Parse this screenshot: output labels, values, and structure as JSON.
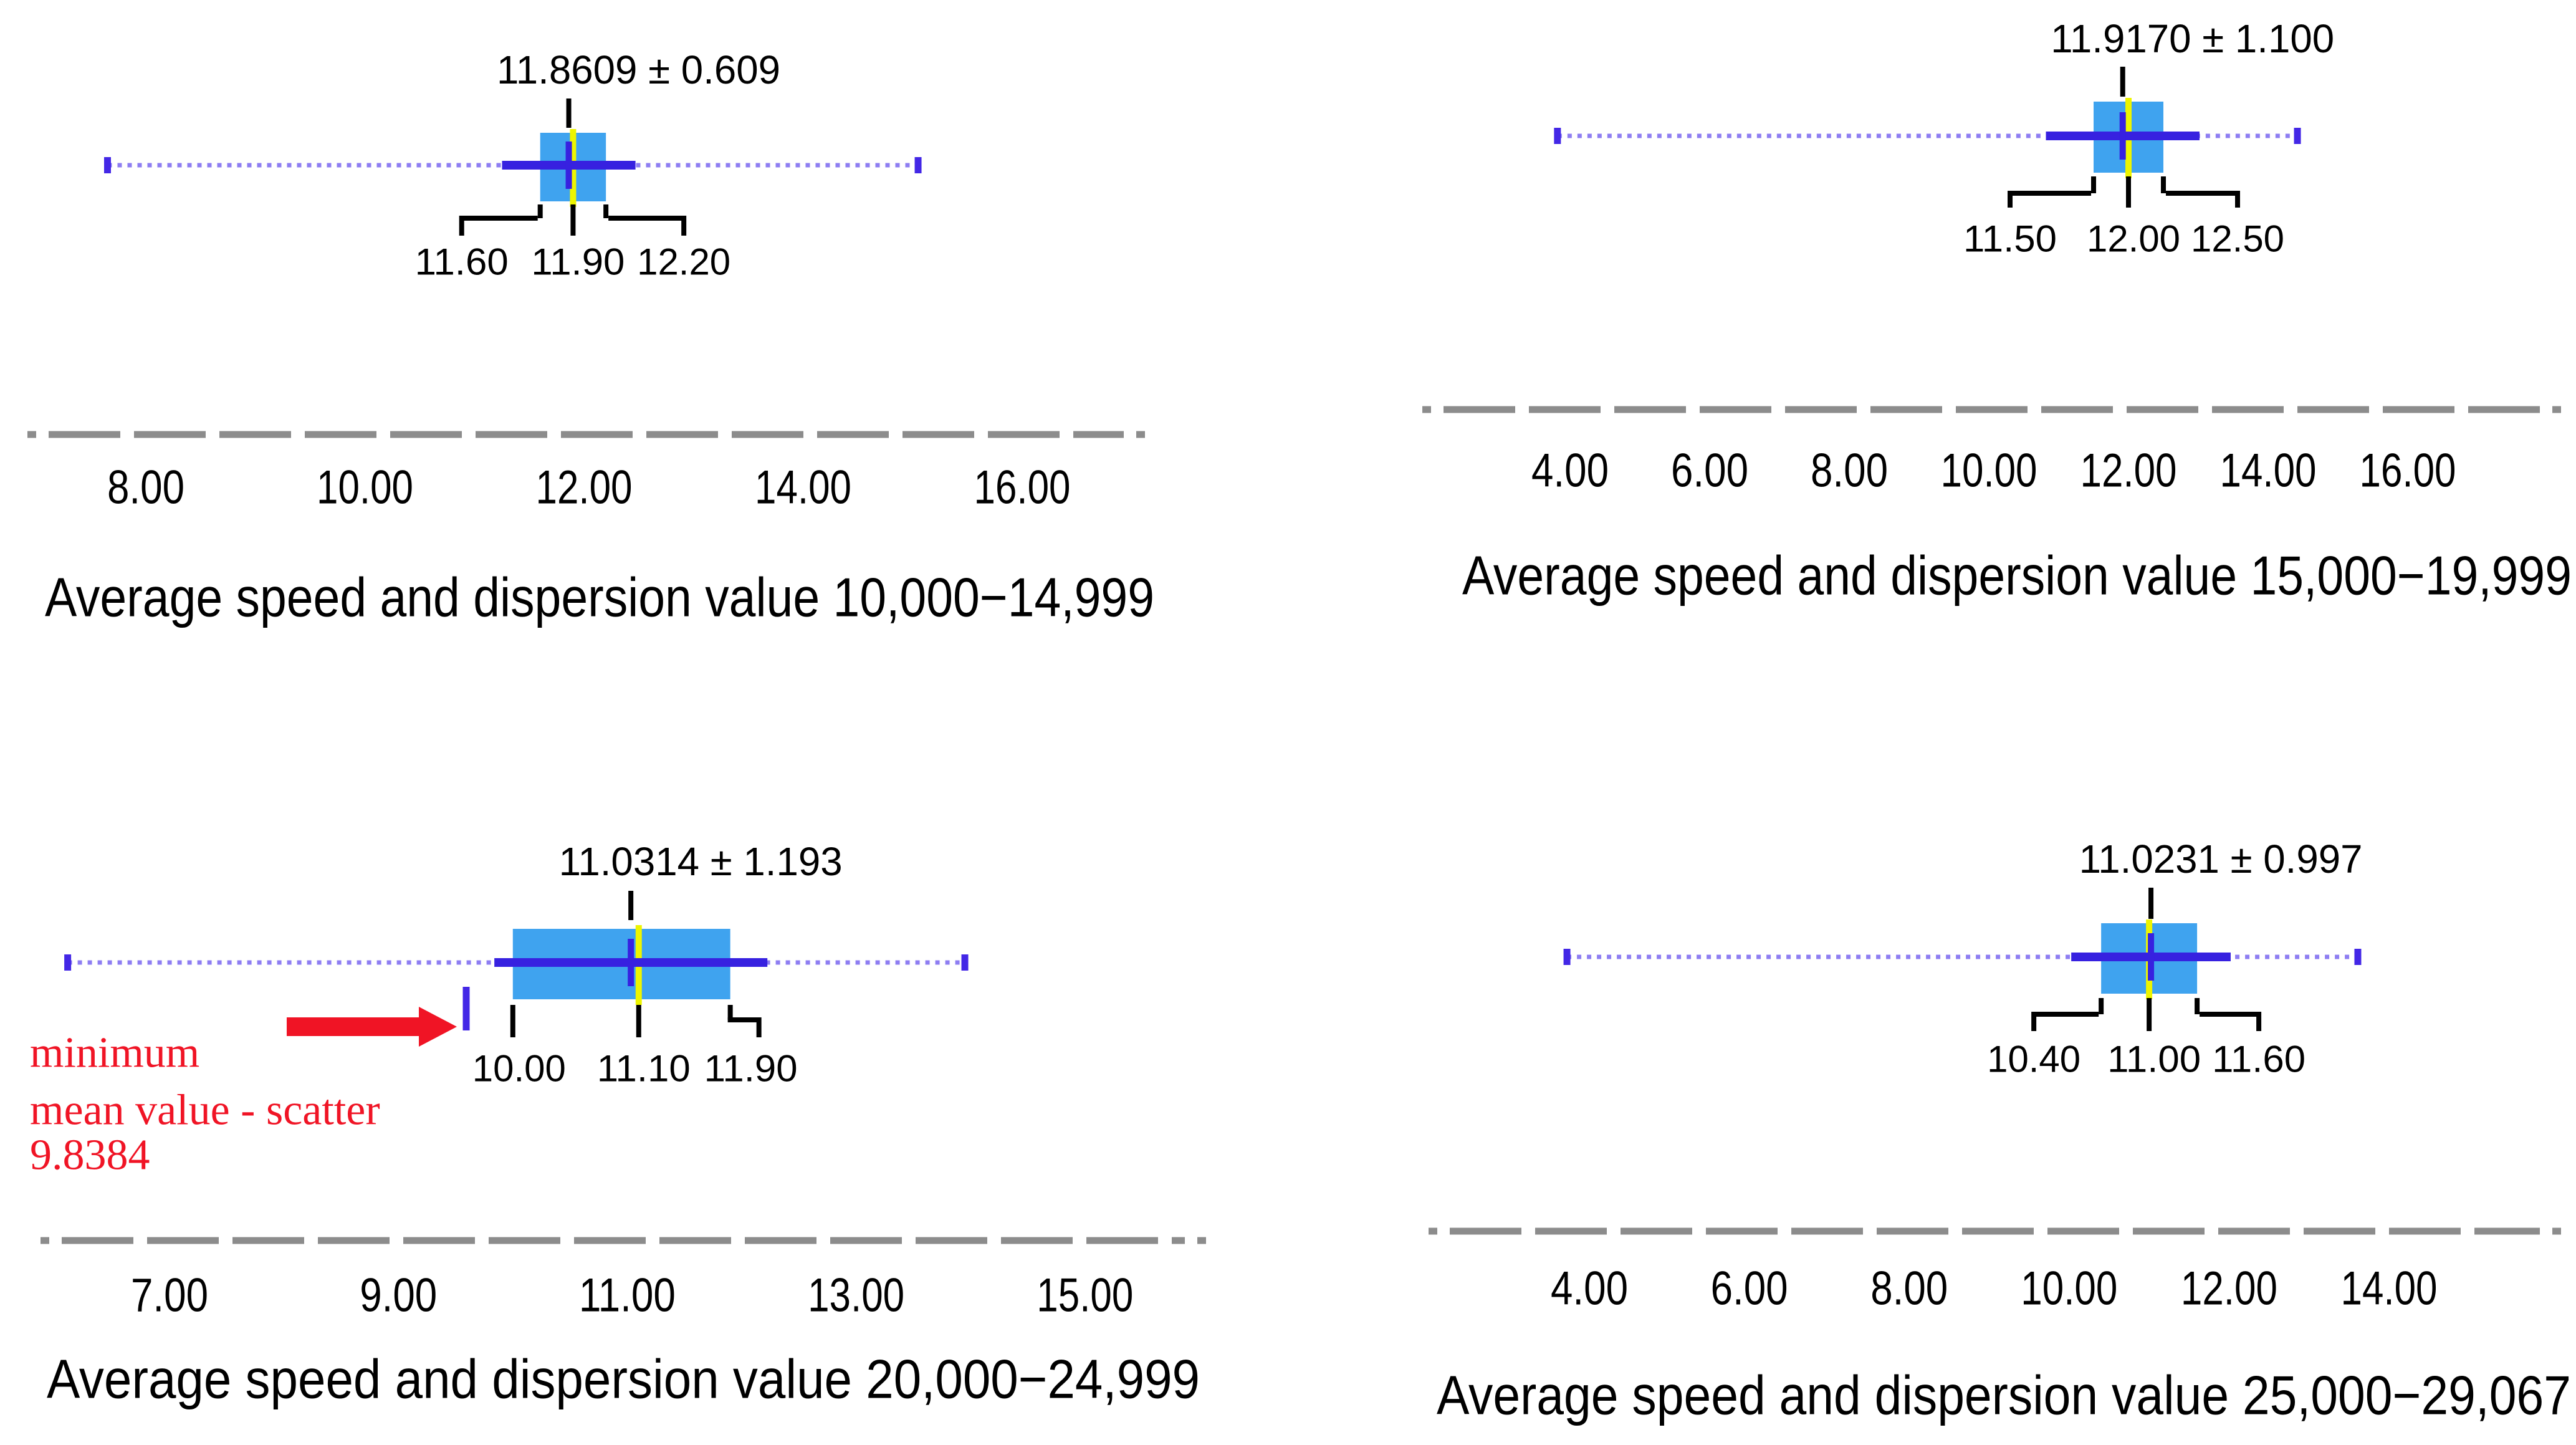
{
  "figure": {
    "background": "#ffffff",
    "description": "Four horizontal box-and-whisker plots of average speed and dispersion values by mileage group"
  },
  "colors": {
    "box_fill": "#3fa3ef",
    "median_line": "#edf500",
    "mean_sd_line": "#3721e0",
    "mean_marker": "#3721e0",
    "whisker_dotted": "#8e7ef2",
    "whisker_cap": "#4327e6",
    "axis_dash": "#8c8c8c",
    "bracket_black": "#000000",
    "text": "#000000",
    "annotation_red": "#f01425"
  },
  "chart_data": [
    {
      "type": "boxplot",
      "panel": "top-left",
      "orientation": "horizontal",
      "mean_label": "11.8609 ± 0.609",
      "mean": 11.8609,
      "sd": 0.609,
      "q1": 11.6,
      "median": 11.9,
      "q3": 12.2,
      "q_labels": [
        "11.60",
        "11.90",
        "12.20"
      ],
      "whisker_min": 7.65,
      "whisker_max": 15.05,
      "x_tick_values": [
        8,
        10,
        12,
        14,
        16
      ],
      "x_tick_labels": [
        "8.00",
        "10.00",
        "12.00",
        "14.00",
        "16.00"
      ],
      "caption": "Average speed and dispersion value 10,000−14,999"
    },
    {
      "type": "boxplot",
      "panel": "top-right",
      "orientation": "horizontal",
      "mean_label": "11.9170 ± 1.100",
      "mean": 11.917,
      "sd": 1.1,
      "q1": 11.5,
      "median": 12.0,
      "q3": 12.5,
      "q_labels": [
        "11.50",
        "12.00",
        "12.50"
      ],
      "whisker_min": 3.82,
      "whisker_max": 14.42,
      "x_tick_values": [
        4,
        6,
        8,
        10,
        12,
        14,
        16
      ],
      "x_tick_labels": [
        "4.00",
        "6.00",
        "8.00",
        "10.00",
        "12.00",
        "14.00",
        "16.00"
      ],
      "caption": "Average speed and dispersion value 15,000−19,999"
    },
    {
      "type": "boxplot",
      "panel": "bottom-left",
      "orientation": "horizontal",
      "mean_label": "11.0314 ± 1.193",
      "mean": 11.0314,
      "sd": 1.193,
      "q1": 10.0,
      "median": 11.1,
      "q3": 11.9,
      "q_labels": [
        "10.00",
        "11.10",
        "11.90"
      ],
      "whisker_min": 6.11,
      "whisker_max": 13.95,
      "x_tick_values": [
        7,
        9,
        11,
        13,
        15
      ],
      "x_tick_labels": [
        "7.00",
        "9.00",
        "11.00",
        "13.00",
        "15.00"
      ],
      "caption": "Average speed and dispersion value 20,000−24,999",
      "annotation": {
        "lines": [
          "minimum",
          "mean value - scatter",
          "9.8384"
        ],
        "value": 9.8384
      }
    },
    {
      "type": "boxplot",
      "panel": "bottom-right",
      "orientation": "horizontal",
      "mean_label": "11.0231 ± 0.997",
      "mean": 11.0231,
      "sd": 0.997,
      "q1": 10.4,
      "median": 11.0,
      "q3": 11.6,
      "q_labels": [
        "10.40",
        "11.00",
        "11.60"
      ],
      "whisker_min": 3.72,
      "whisker_max": 13.61,
      "x_tick_values": [
        4,
        6,
        8,
        10,
        12,
        14
      ],
      "x_tick_labels": [
        "4.00",
        "6.00",
        "8.00",
        "10.00",
        "12.00",
        "14.00"
      ],
      "caption": "Average speed and dispersion value 25,000−29,067"
    }
  ]
}
